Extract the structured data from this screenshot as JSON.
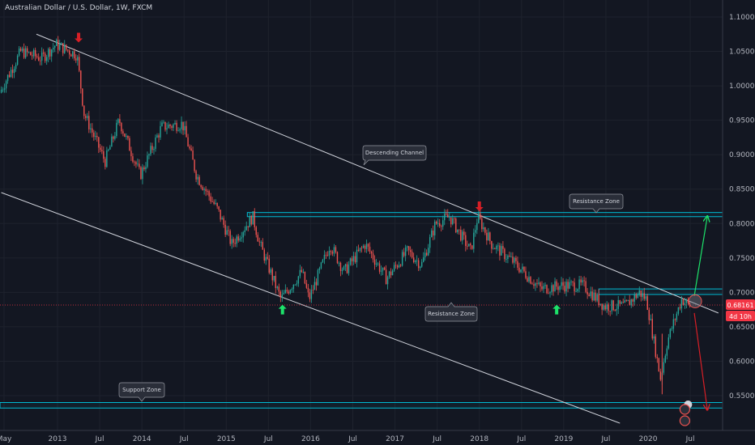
{
  "header": {
    "title": "Australian Dollar / U.S. Dollar, 1W, FXCM"
  },
  "colors": {
    "background": "#131722",
    "up": "#26a69a",
    "down": "#ef5350",
    "zone": "#00bcd4",
    "trend": "#d1d4dc",
    "arrow_up": "#1de26a",
    "arrow_down": "#d81f26",
    "price_tag": "#f23645"
  },
  "price_axis": {
    "ticks": [
      "0.55000",
      "0.60000",
      "0.65000",
      "0.70000",
      "0.75000",
      "0.80000",
      "0.85000",
      "0.90000",
      "0.95000",
      "1.00000",
      "1.05000",
      "1.10000"
    ],
    "current_price_label": "0.68161",
    "countdown_label": "4d 10h"
  },
  "time_axis": {
    "ticks": [
      "May",
      "2013",
      "Jul",
      "2014",
      "Jul",
      "2015",
      "Jul",
      "2016",
      "Jul",
      "2017",
      "Jul",
      "2018",
      "Jul",
      "2019",
      "Jul",
      "2020",
      "Jul"
    ]
  },
  "annotations": {
    "descending_channel": "Descending Channel",
    "resistance_zone_top": "Resistance Zone",
    "resistance_zone_mid": "Resistance Zone",
    "support_zone": "Support Zone"
  },
  "chart_data": {
    "type": "candlestick",
    "symbol": "AUDUSD",
    "timeframe": "1W",
    "source": "FXCM",
    "y_range": [
      0.51,
      1.12
    ],
    "x_range": [
      "2012-05",
      "2020-11"
    ],
    "current_price": 0.68161,
    "zones": [
      {
        "label": "Resistance Zone",
        "low": 0.81,
        "high": 0.816,
        "from": "2015-04",
        "to": "2020-11"
      },
      {
        "label": "Resistance Zone",
        "low": 0.697,
        "high": 0.705,
        "from": "2019-06",
        "to": "2020-11"
      },
      {
        "label": "Support Zone",
        "low": 0.532,
        "high": 0.54,
        "from": "2012-05",
        "to": "2020-11"
      }
    ],
    "trendlines": [
      {
        "name": "Descending Channel upper",
        "from": [
          "2012-10",
          1.075
        ],
        "to": [
          "2020-11",
          0.67
        ]
      },
      {
        "name": "Descending Channel lower",
        "from": [
          "2012-05",
          0.845
        ],
        "to": [
          "2019-09",
          0.51
        ]
      }
    ],
    "price_path": [
      [
        "2012-05",
        0.99
      ],
      [
        "2012-08",
        1.05
      ],
      [
        "2012-11",
        1.04
      ],
      [
        "2013-01",
        1.06
      ],
      [
        "2013-04",
        1.045
      ],
      [
        "2013-05",
        0.96
      ],
      [
        "2013-08",
        0.89
      ],
      [
        "2013-10",
        0.95
      ],
      [
        "2014-01",
        0.87
      ],
      [
        "2014-04",
        0.94
      ],
      [
        "2014-07",
        0.945
      ],
      [
        "2014-09",
        0.87
      ],
      [
        "2014-12",
        0.82
      ],
      [
        "2015-02",
        0.77
      ],
      [
        "2015-05",
        0.81
      ],
      [
        "2015-06",
        0.77
      ],
      [
        "2015-09",
        0.69
      ],
      [
        "2015-12",
        0.73
      ],
      [
        "2016-01",
        0.69
      ],
      [
        "2016-04",
        0.77
      ],
      [
        "2016-06",
        0.73
      ],
      [
        "2016-09",
        0.77
      ],
      [
        "2016-12",
        0.72
      ],
      [
        "2017-03",
        0.76
      ],
      [
        "2017-05",
        0.74
      ],
      [
        "2017-07",
        0.8
      ],
      [
        "2017-09",
        0.81
      ],
      [
        "2017-12",
        0.76
      ],
      [
        "2018-01",
        0.81
      ],
      [
        "2018-03",
        0.77
      ],
      [
        "2018-06",
        0.745
      ],
      [
        "2018-10",
        0.705
      ],
      [
        "2019-01",
        0.71
      ],
      [
        "2019-04",
        0.71
      ],
      [
        "2019-07",
        0.68
      ],
      [
        "2019-10",
        0.68
      ],
      [
        "2019-12",
        0.7
      ],
      [
        "2020-01",
        0.69
      ],
      [
        "2020-03",
        0.575
      ],
      [
        "2020-04",
        0.63
      ],
      [
        "2020-06",
        0.69
      ],
      [
        "2020-07",
        0.68161
      ]
    ],
    "projections": [
      {
        "direction": "up",
        "from": [
          "2020-07",
          0.695
        ],
        "to": [
          "2020-10",
          0.81
        ]
      },
      {
        "direction": "down",
        "from": [
          "2020-07",
          0.67
        ],
        "to": [
          "2020-10",
          0.53
        ]
      }
    ],
    "markers": [
      {
        "type": "down-arrow",
        "at": [
          "2013-04",
          1.07
        ]
      },
      {
        "type": "down-arrow",
        "at": [
          "2018-01",
          0.825
        ]
      },
      {
        "type": "up-arrow",
        "at": [
          "2015-09",
          0.675
        ]
      },
      {
        "type": "up-arrow",
        "at": [
          "2018-12",
          0.675
        ]
      }
    ]
  }
}
